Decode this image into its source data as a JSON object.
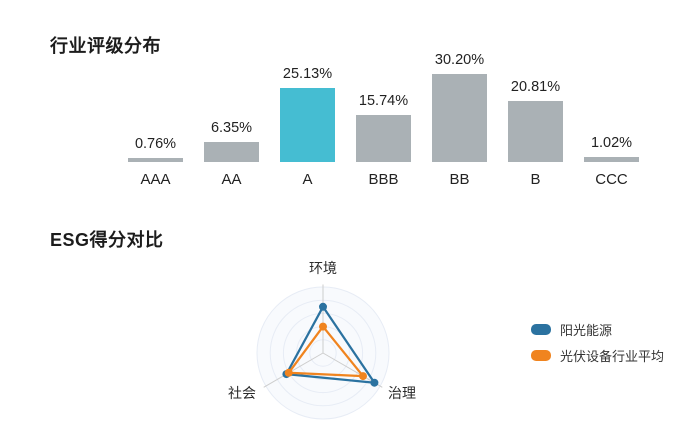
{
  "bar_section": {
    "title": "行业评级分布"
  },
  "radar_section": {
    "title": "ESG得分对比"
  },
  "legend": {
    "items": [
      {
        "label": "阳光能源"
      },
      {
        "label": "光伏设备行业平均"
      }
    ]
  },
  "chart_data": [
    {
      "type": "bar",
      "title": "行业评级分布",
      "categories": [
        "AAA",
        "AA",
        "A",
        "BBB",
        "BB",
        "B",
        "CCC"
      ],
      "values": [
        0.76,
        6.35,
        25.13,
        15.74,
        30.2,
        20.81,
        1.02
      ],
      "value_labels": [
        "0.76%",
        "6.35%",
        "25.13%",
        "15.74%",
        "30.20%",
        "20.81%",
        "1.02%"
      ],
      "highlight_index": 2,
      "bar_color": "#aab1b5",
      "highlight_color": "#45bdd2",
      "xlabel": "",
      "ylabel": "",
      "ylim": [
        0,
        30.2
      ],
      "grid": false,
      "value_labels_position": "above-bars"
    },
    {
      "type": "radar",
      "title": "ESG得分对比",
      "axes": [
        "环境",
        "治理",
        "社会"
      ],
      "series": [
        {
          "name": "阳光能源",
          "color": "#2b72a0",
          "values": [
            70,
            90,
            64
          ]
        },
        {
          "name": "光伏设备行业平均",
          "color": "#f0841f",
          "values": [
            40,
            70,
            60
          ]
        }
      ],
      "max": 100,
      "rings": 5,
      "ring_color": "#e7ecf5",
      "spoke_color": "#cdcdcd",
      "legend_position": "right"
    }
  ]
}
